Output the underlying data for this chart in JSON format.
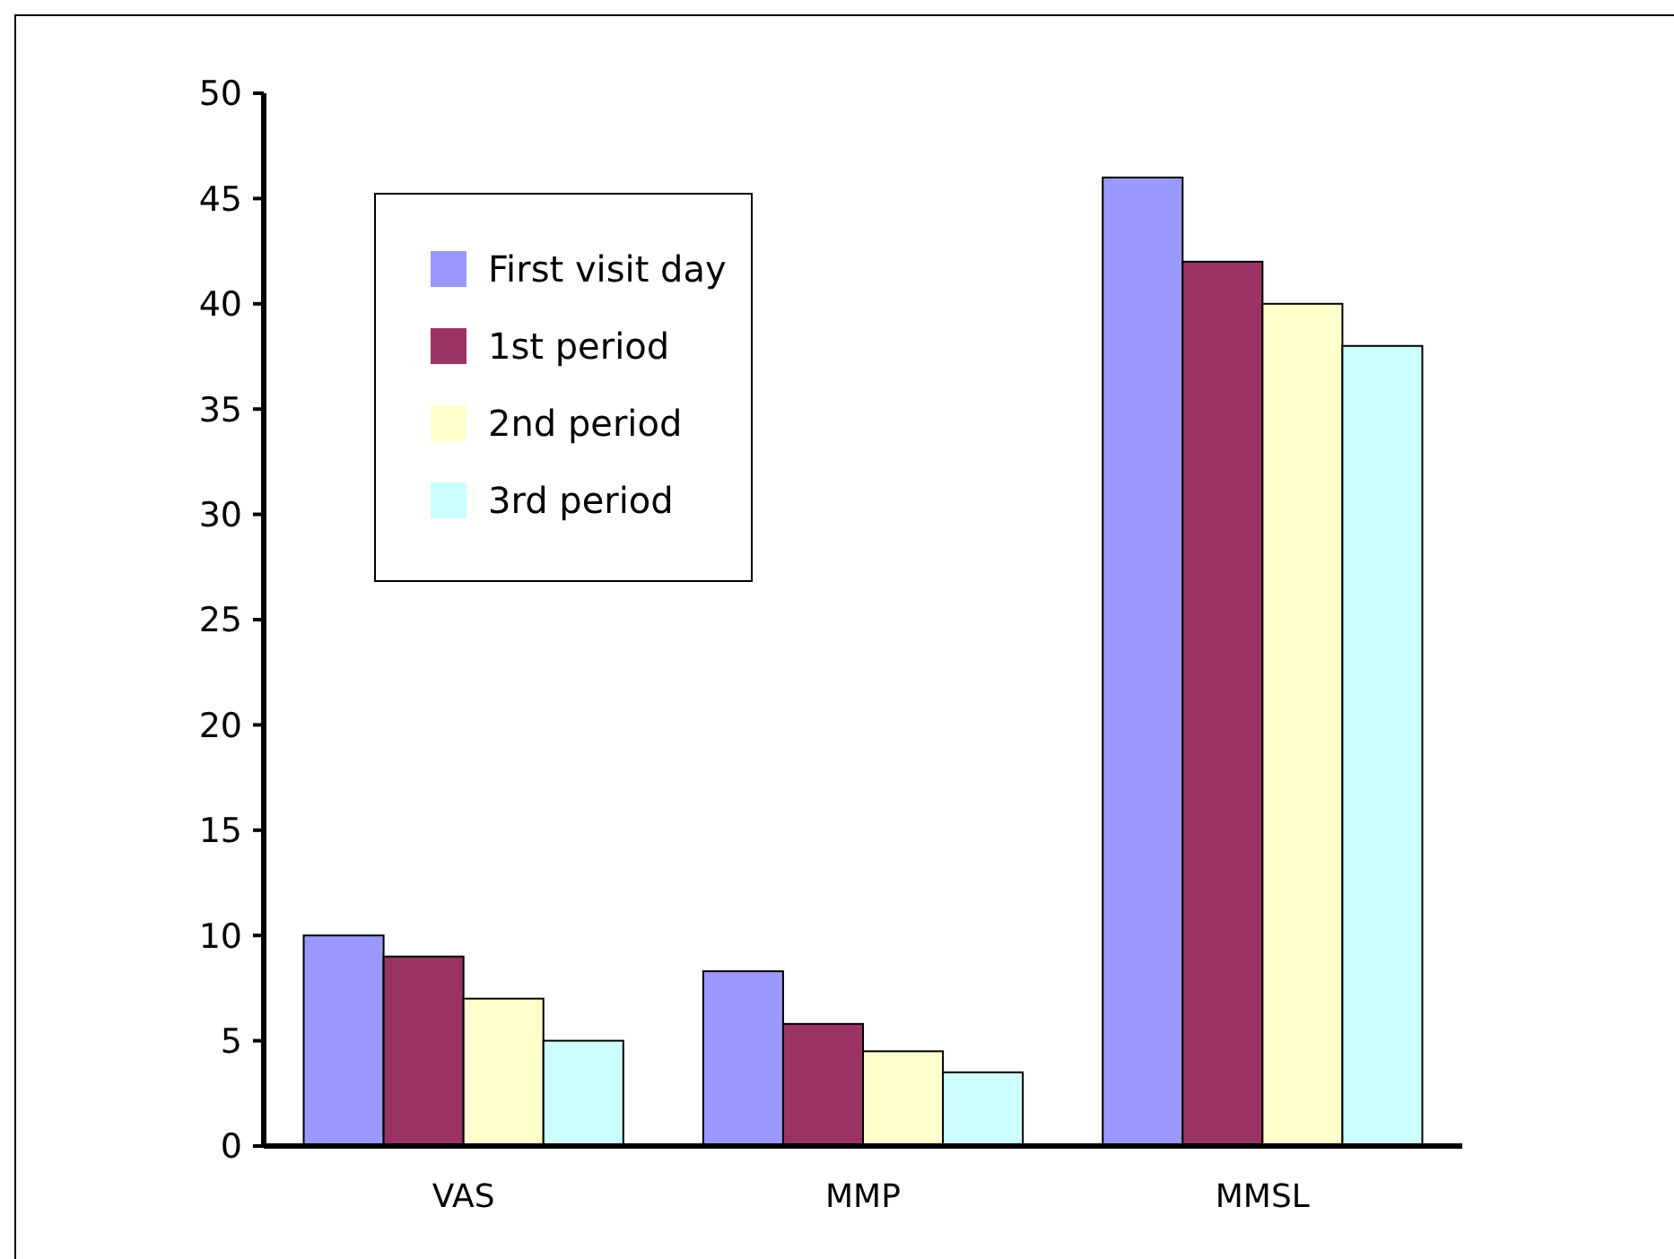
{
  "chart_data": {
    "type": "bar",
    "categories": [
      "VAS",
      "MMP",
      "MMSL"
    ],
    "series": [
      {
        "name": "First visit day",
        "color": "#9999ff",
        "values": [
          10,
          8.3,
          46
        ]
      },
      {
        "name": "1st period",
        "color": "#993366",
        "values": [
          9,
          5.8,
          42
        ]
      },
      {
        "name": "2nd period",
        "color": "#ffffcc",
        "values": [
          7,
          4.5,
          40
        ]
      },
      {
        "name": "3rd period",
        "color": "#ccffff",
        "values": [
          5,
          3.5,
          38
        ]
      }
    ],
    "ylim": [
      0,
      50
    ],
    "yticks": [
      0,
      5,
      10,
      15,
      20,
      25,
      30,
      35,
      40,
      45,
      50
    ],
    "grid": false,
    "legend": "top left"
  }
}
